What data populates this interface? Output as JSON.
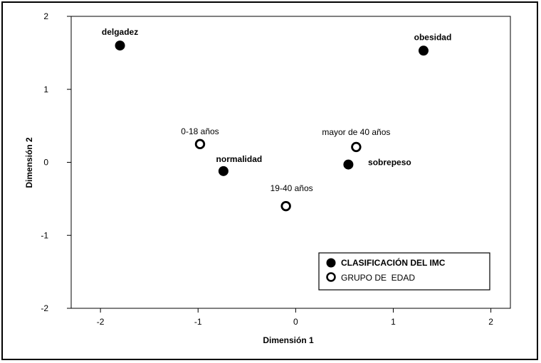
{
  "chart_data": {
    "type": "scatter",
    "title": "",
    "xlabel": "Dimensión 1",
    "ylabel": "Dimensión 2",
    "xlim": [
      -2.3,
      2.2
    ],
    "ylim": [
      -2,
      2
    ],
    "xticks": [
      -2,
      -1,
      0,
      1,
      2
    ],
    "yticks": [
      -2,
      -1,
      0,
      1,
      2
    ],
    "grid": false,
    "legend_position": "bottom-right",
    "series": [
      {
        "name": "CLASIFICACIÓN DEL IMC",
        "marker": "filled-circle",
        "points": [
          {
            "label": "delgadez",
            "x": -1.8,
            "y": 1.6
          },
          {
            "label": "obesidad",
            "x": 1.31,
            "y": 1.53
          },
          {
            "label": "normalidad",
            "x": -0.74,
            "y": -0.12
          },
          {
            "label": "sobrepeso",
            "x": 0.54,
            "y": -0.03
          }
        ]
      },
      {
        "name": "GRUPO DE  EDAD",
        "marker": "open-circle",
        "points": [
          {
            "label": "0-18 años",
            "x": -0.98,
            "y": 0.25
          },
          {
            "label": "mayor de 40 años",
            "x": 0.62,
            "y": 0.21
          },
          {
            "label": "19-40 años",
            "x": -0.1,
            "y": -0.6
          }
        ]
      }
    ]
  }
}
